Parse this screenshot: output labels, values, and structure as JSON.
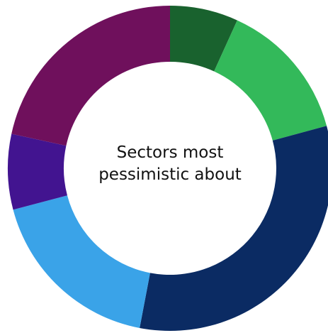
{
  "chart_data": {
    "type": "pie",
    "variant": "donut",
    "center_label": {
      "line1": "Sectors most",
      "line2": "pessimistic about"
    },
    "slices": [
      {
        "value": 6.8,
        "color": "#19622e"
      },
      {
        "value": 14.0,
        "color": "#33b95a"
      },
      {
        "value": 32.2,
        "color": "#0b2b63"
      },
      {
        "value": 17.9,
        "color": "#3aa3e8"
      },
      {
        "value": 7.5,
        "color": "#421490"
      },
      {
        "value": 21.6,
        "color": "#6f105c"
      }
    ]
  }
}
